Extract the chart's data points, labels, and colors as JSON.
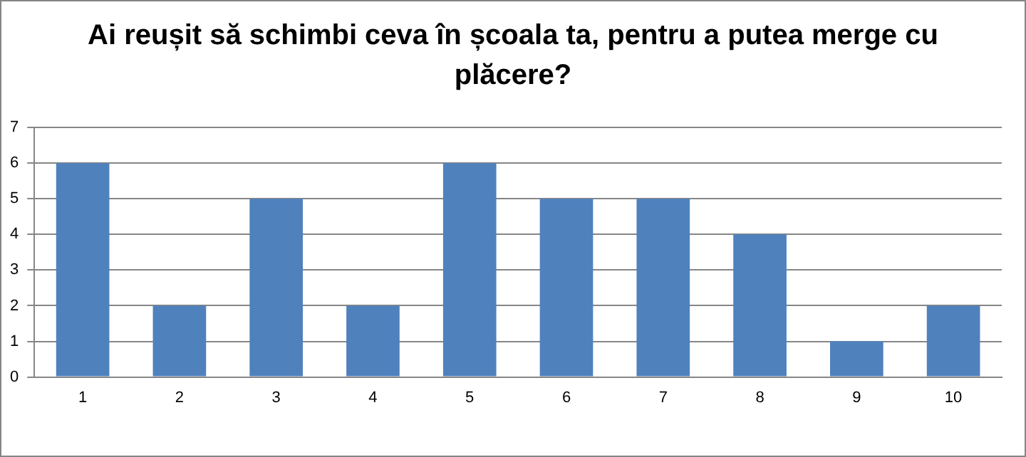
{
  "chart_data": {
    "type": "bar",
    "title": "Ai reușit să schimbi ceva în școala ta, pentru a putea merge cu plăcere?",
    "categories": [
      "1",
      "2",
      "3",
      "4",
      "5",
      "6",
      "7",
      "8",
      "9",
      "10"
    ],
    "values": [
      6,
      2,
      5,
      2,
      6,
      5,
      5,
      4,
      1,
      2
    ],
    "color": "#4f81bd",
    "ylim": [
      0,
      7
    ],
    "yticks": [
      0,
      1,
      2,
      3,
      4,
      5,
      6,
      7
    ],
    "grid": "y"
  }
}
